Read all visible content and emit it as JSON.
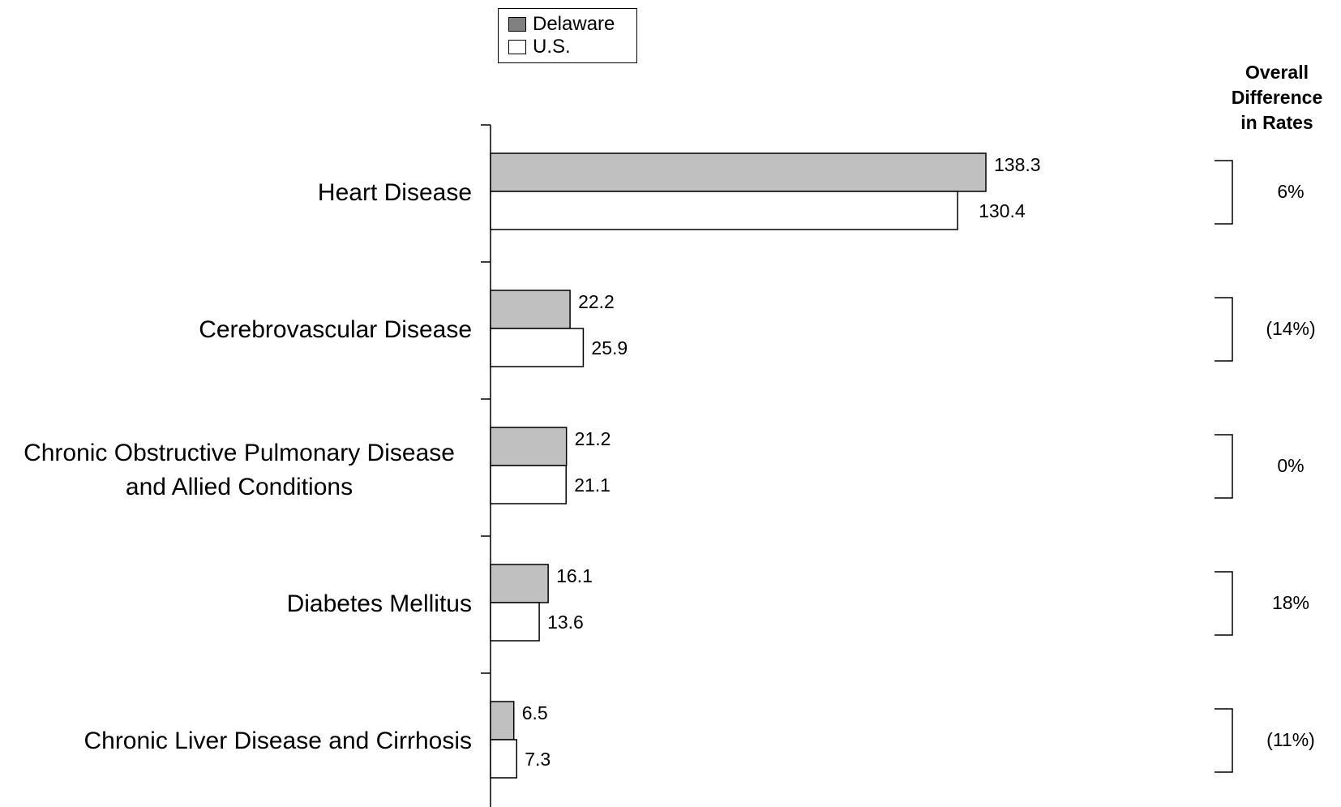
{
  "chart_data": {
    "type": "bar",
    "orientation": "horizontal",
    "categories": [
      [
        "Heart Disease"
      ],
      [
        "Cerebrovascular Disease"
      ],
      [
        "Chronic Obstructive Pulmonary Disease",
        "and Allied Conditions"
      ],
      [
        "Diabetes Mellitus"
      ],
      [
        "Chronic Liver Disease and Cirrhosis"
      ]
    ],
    "series": [
      {
        "name": "Delaware",
        "values": [
          138.3,
          22.2,
          21.2,
          16.1,
          6.5
        ],
        "color": "#c0c0c0"
      },
      {
        "name": "U.S.",
        "values": [
          130.4,
          25.9,
          21.1,
          13.6,
          7.3
        ],
        "color": "#ffffff"
      }
    ],
    "value_labels": [
      [
        "138.3",
        "22.2",
        "21.2",
        "16.1",
        "6.5"
      ],
      [
        "130.4",
        "25.9",
        "21.1",
        "13.6",
        "7.3"
      ]
    ],
    "difference_header": [
      "Overall",
      "Difference",
      "in Rates"
    ],
    "differences": [
      "6%",
      "(14%)",
      "0%",
      "18%",
      "(11%)"
    ],
    "xlim": [
      0,
      160
    ],
    "grid": false,
    "legend_position": "top-center",
    "legend_swatch_colors": [
      "#808080",
      "#ffffff"
    ]
  }
}
